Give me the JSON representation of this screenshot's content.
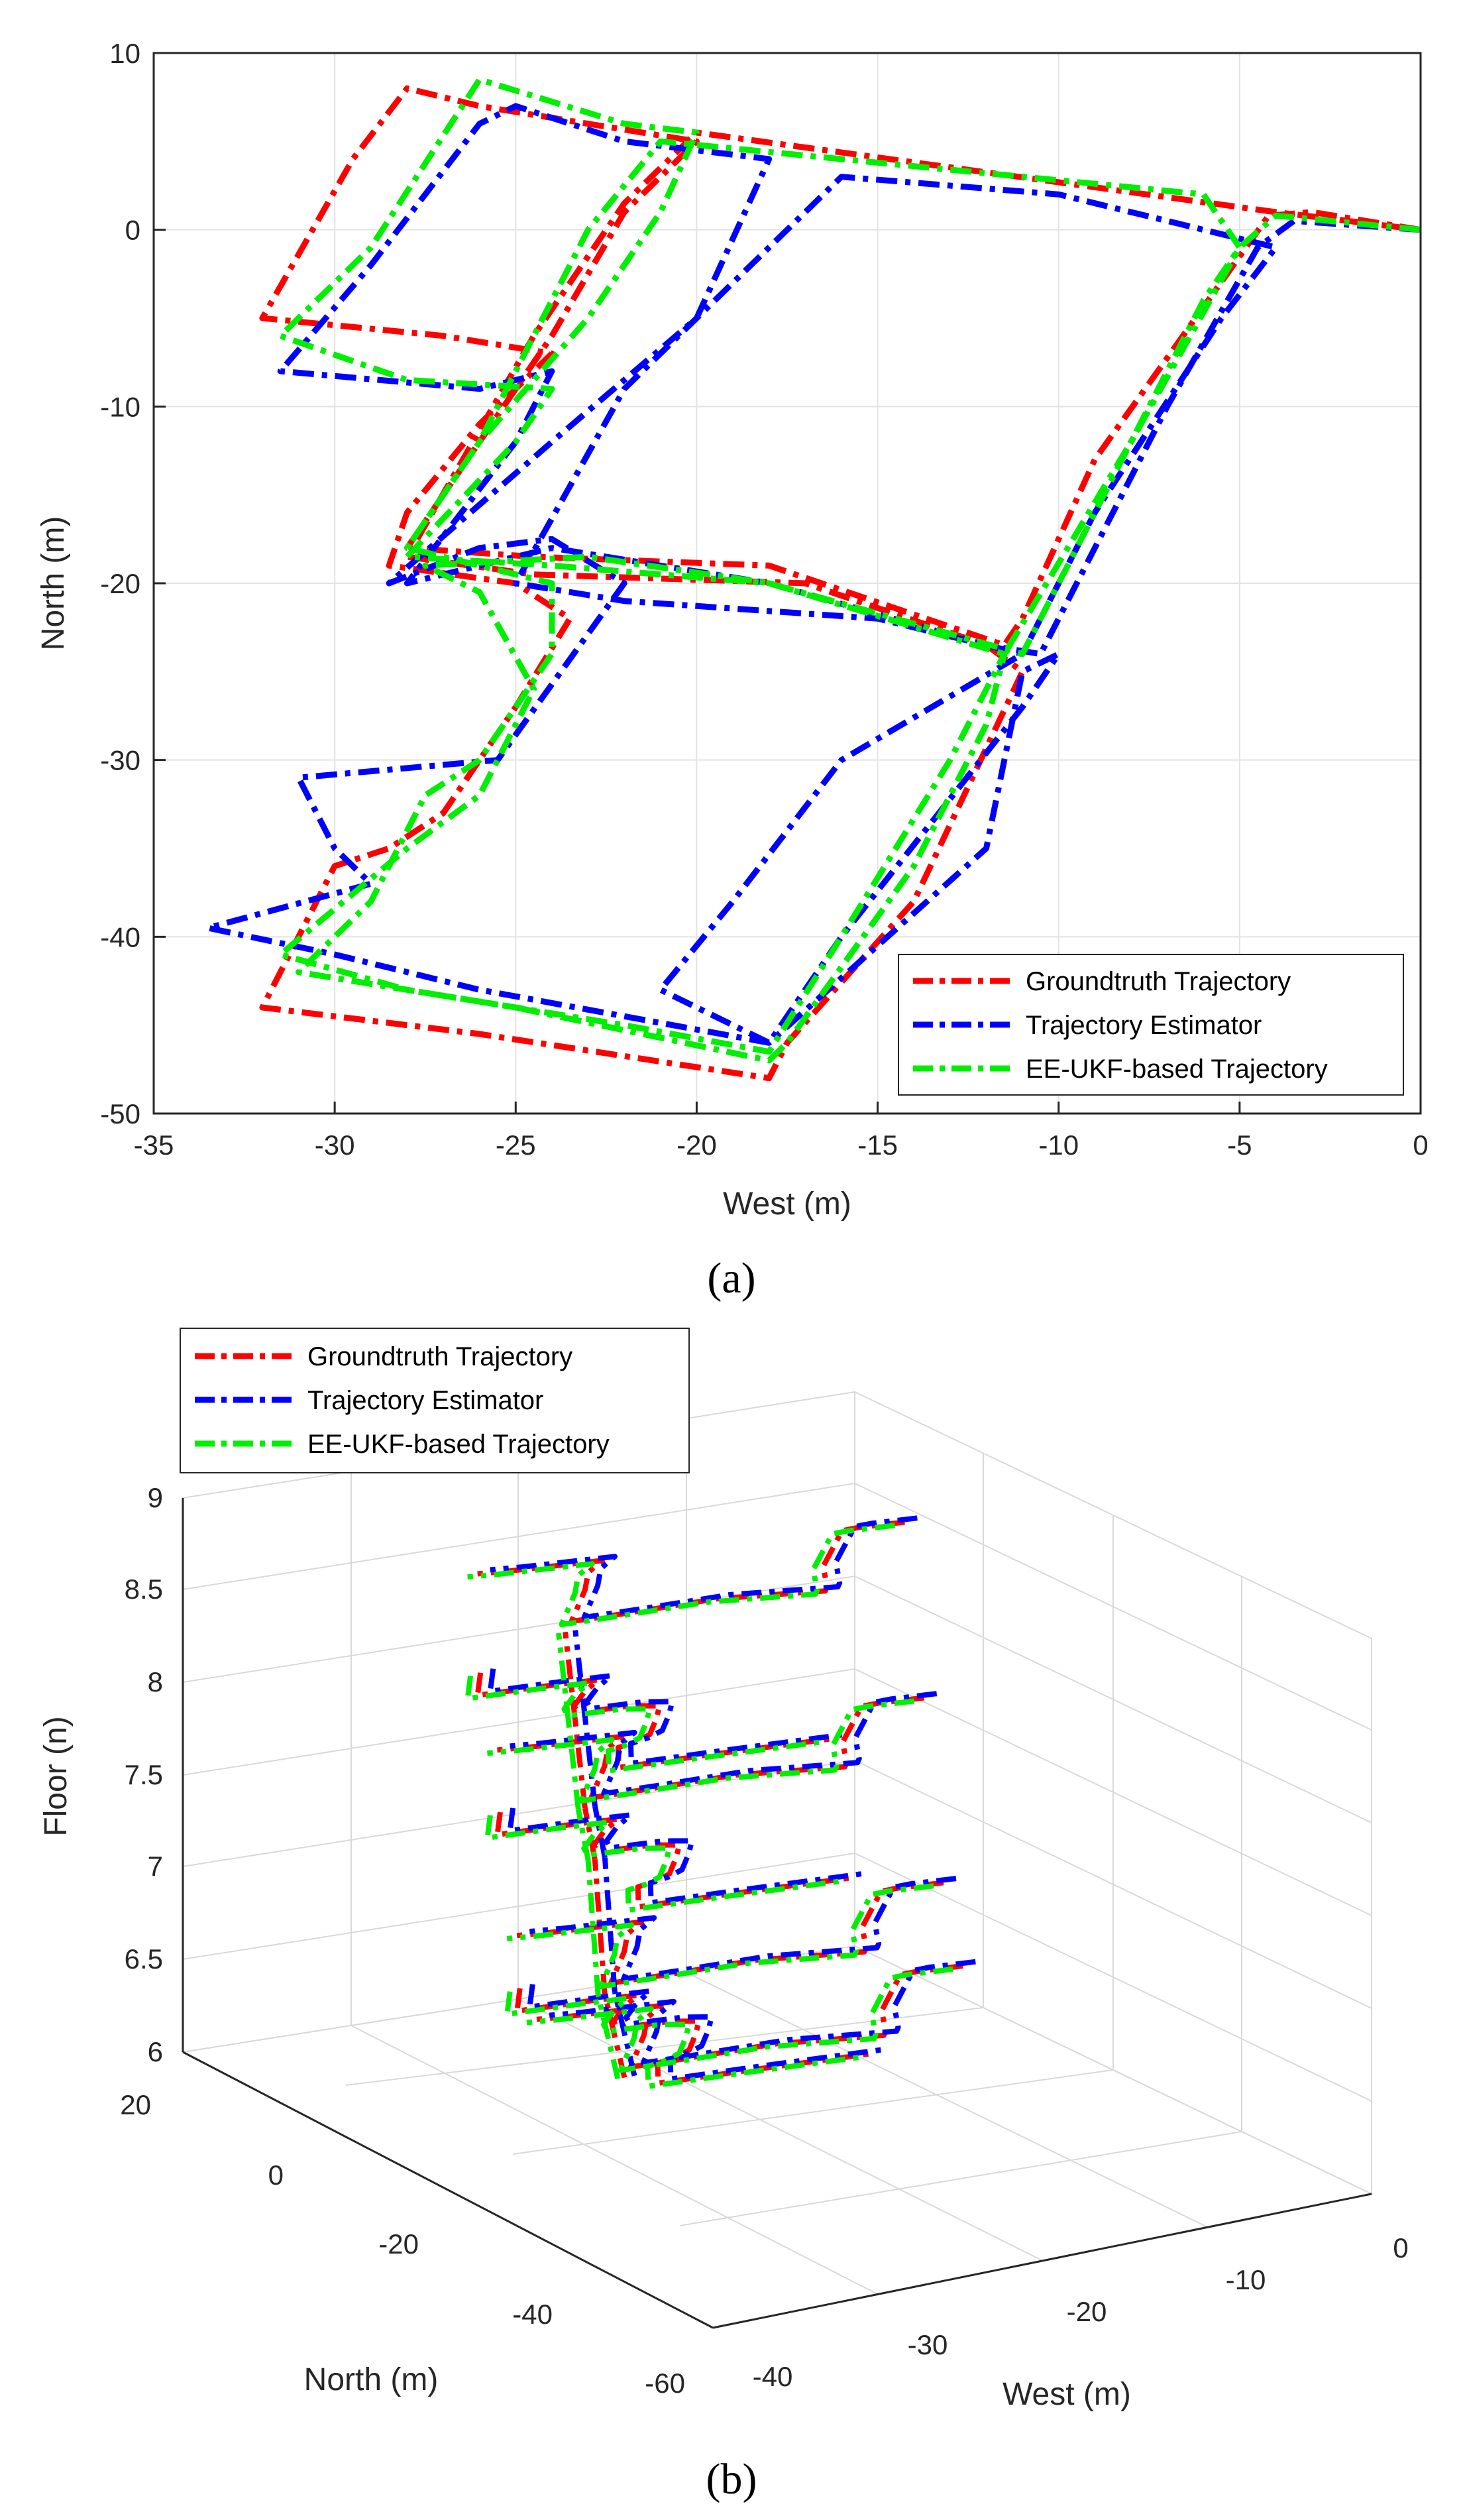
{
  "chart_data": [
    {
      "type": "line",
      "panel": "(a)",
      "xlabel": "West (m)",
      "ylabel": "North (m)",
      "xlim": [
        -35,
        0
      ],
      "ylim": [
        -50,
        10
      ],
      "xticks": [
        "-35",
        "-30",
        "-25",
        "-20",
        "-15",
        "-10",
        "-5",
        "0"
      ],
      "yticks": [
        "10",
        "0",
        "-10",
        "-20",
        "-30",
        "-40",
        "-50"
      ],
      "grid": true,
      "legend_position": "bottom-right",
      "series": [
        {
          "name": "Groundtruth Trajectory",
          "color": "#ff0000",
          "points": [
            [
              0,
              0
            ],
            [
              -3,
              1
            ],
            [
              -4.2,
              0.8
            ],
            [
              -9,
              -13
            ],
            [
              -11,
              -22
            ],
            [
              -11.5,
              -23.5
            ],
            [
              -18,
              -19
            ],
            [
              -24.5,
              -18.5
            ],
            [
              -28,
              -18
            ],
            [
              -24,
              -6
            ],
            [
              -22,
              1
            ],
            [
              -20,
              5
            ],
            [
              -26,
              7
            ],
            [
              -28,
              8
            ],
            [
              -29.5,
              4
            ],
            [
              -32,
              -5
            ],
            [
              -27,
              -6
            ],
            [
              -24,
              -7
            ],
            [
              -26,
              -11
            ],
            [
              -28,
              -16
            ],
            [
              -28.5,
              -19
            ],
            [
              -25,
              -20
            ],
            [
              -23.5,
              -22
            ],
            [
              -25,
              -27
            ],
            [
              -27,
              -33
            ],
            [
              -28.5,
              -35
            ],
            [
              -30,
              -36
            ],
            [
              -32,
              -44
            ],
            [
              -26,
              -45.5
            ],
            [
              -18,
              -48
            ],
            [
              -17.5,
              -46
            ],
            [
              -14,
              -38
            ],
            [
              -11,
              -25
            ],
            [
              -12,
              -23.5
            ],
            [
              -17,
              -20
            ],
            [
              -24.5,
              -19.5
            ],
            [
              -28,
              -18.5
            ],
            [
              -24.5,
              -6
            ],
            [
              -22,
              1.5
            ],
            [
              -20,
              5.5
            ],
            [
              -4,
              1
            ],
            [
              0,
              0
            ]
          ]
        },
        {
          "name": "Trajectory Estimator",
          "color": "#0000ff",
          "points": [
            [
              0,
              0
            ],
            [
              -3.5,
              0.5
            ],
            [
              -4.5,
              -1
            ],
            [
              -7,
              -10
            ],
            [
              -10.5,
              -24
            ],
            [
              -12,
              -23.5
            ],
            [
              -18,
              -20
            ],
            [
              -24,
              -18
            ],
            [
              -28,
              -20
            ],
            [
              -25,
              -12
            ],
            [
              -24,
              -8
            ],
            [
              -26,
              -9
            ],
            [
              -31.5,
              -8
            ],
            [
              -29,
              -2
            ],
            [
              -26,
              6
            ],
            [
              -25,
              7
            ],
            [
              -22,
              5
            ],
            [
              -18,
              4
            ],
            [
              -20,
              -5
            ],
            [
              -24,
              -12
            ],
            [
              -28.5,
              -20
            ],
            [
              -26,
              -18
            ],
            [
              -24,
              -17.5
            ],
            [
              -22,
              -20
            ],
            [
              -25.5,
              -30
            ],
            [
              -31,
              -31
            ],
            [
              -30,
              -35
            ],
            [
              -29,
              -37
            ],
            [
              -33.5,
              -39.5
            ],
            [
              -30,
              -41
            ],
            [
              -26,
              -43
            ],
            [
              -18,
              -46
            ],
            [
              -12,
              -35
            ],
            [
              -11,
              -25
            ],
            [
              -10,
              -24
            ],
            [
              -11,
              -27
            ],
            [
              -16,
              -40
            ],
            [
              -18,
              -46
            ],
            [
              -21,
              -43
            ],
            [
              -19,
              -38
            ],
            [
              -16,
              -30
            ],
            [
              -11,
              -24
            ],
            [
              -15,
              -22
            ],
            [
              -22,
              -21
            ],
            [
              -25,
              -20
            ],
            [
              -22,
              -9
            ],
            [
              -20,
              -5
            ],
            [
              -16,
              3
            ],
            [
              -10,
              2
            ],
            [
              -4,
              -1
            ],
            [
              -5.5,
              -5
            ],
            [
              -9,
              -16
            ],
            [
              -11,
              -24
            ]
          ]
        },
        {
          "name": "EE-UKF-based Trajectory",
          "color": "#00ee00",
          "points": [
            [
              0,
              0
            ],
            [
              -4,
              0.8
            ],
            [
              -5,
              -1
            ],
            [
              -8,
              -12
            ],
            [
              -11.5,
              -24
            ],
            [
              -18,
              -20
            ],
            [
              -24,
              -19
            ],
            [
              -28,
              -18.5
            ],
            [
              -25,
              -12
            ],
            [
              -24,
              -9
            ],
            [
              -28,
              -8.5
            ],
            [
              -31.5,
              -6
            ],
            [
              -29,
              -1
            ],
            [
              -26,
              8.5
            ],
            [
              -22,
              6
            ],
            [
              -20,
              5.5
            ],
            [
              -21,
              1
            ],
            [
              -23,
              -5
            ],
            [
              -26,
              -12
            ],
            [
              -28,
              -18
            ],
            [
              -24,
              -20
            ],
            [
              -24,
              -24
            ],
            [
              -26,
              -30
            ],
            [
              -27.5,
              -32
            ],
            [
              -29,
              -38
            ],
            [
              -31,
              -42
            ],
            [
              -25,
              -44
            ],
            [
              -18,
              -47
            ],
            [
              -17.5,
              -46
            ],
            [
              -14,
              -36
            ],
            [
              -12,
              -28
            ],
            [
              -11.5,
              -24
            ],
            [
              -13,
              -30
            ],
            [
              -16,
              -40
            ],
            [
              -18,
              -46.5
            ],
            [
              -22,
              -45
            ],
            [
              -28,
              -43
            ],
            [
              -31.5,
              -41
            ],
            [
              -28,
              -35
            ],
            [
              -26,
              -32
            ],
            [
              -24.5,
              -26
            ],
            [
              -26,
              -20.5
            ],
            [
              -27.5,
              -19
            ],
            [
              -23,
              -18.5
            ],
            [
              -18,
              -20
            ],
            [
              -11,
              -24
            ],
            [
              -9,
              -16
            ],
            [
              -6,
              -4
            ],
            [
              -5,
              -1
            ],
            [
              -6,
              2
            ],
            [
              -16,
              4
            ],
            [
              -21,
              5
            ],
            [
              -23,
              0
            ],
            [
              -26,
              -12
            ],
            [
              -28,
              -18
            ]
          ]
        }
      ]
    },
    {
      "type": "line",
      "panel": "(b)",
      "xlabel": "West (m)",
      "ylabel": "North (m)",
      "zlabel": "Floor (n)",
      "xlim": [
        -40,
        0
      ],
      "ylim": [
        -60,
        20
      ],
      "zlim": [
        6,
        9
      ],
      "xticks": [
        "-40",
        "-30",
        "-20",
        "-10",
        "0"
      ],
      "yticks": [
        "20",
        "0",
        "-20",
        "-40",
        "-60"
      ],
      "zticks": [
        "9",
        "8.5",
        "8",
        "7.5",
        "7",
        "6.5",
        "6"
      ],
      "grid": true,
      "legend_position": "top-left",
      "series": [
        {
          "name": "Groundtruth Trajectory",
          "color": "#ff0000"
        },
        {
          "name": "Trajectory Estimator",
          "color": "#0000ff"
        },
        {
          "name": "EE-UKF-based Trajectory",
          "color": "#00ee00"
        }
      ]
    }
  ],
  "captions": {
    "a": "(a)",
    "b": "(b)"
  }
}
